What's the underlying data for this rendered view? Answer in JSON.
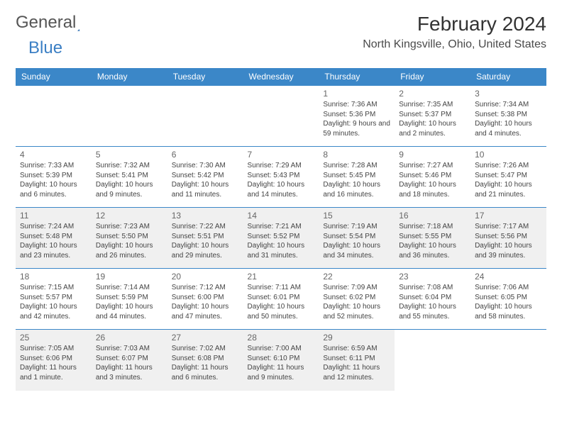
{
  "brand": {
    "word1": "General",
    "word2": "Blue",
    "logo_color": "#2a6bb0"
  },
  "title": "February 2024",
  "location": "North Kingsville, Ohio, United States",
  "colors": {
    "header_bg": "#3b87c8",
    "header_text": "#ffffff",
    "cell_border": "#3b87c8",
    "alt_row_bg": "#f0f0f0",
    "text": "#444444"
  },
  "day_headers": [
    "Sunday",
    "Monday",
    "Tuesday",
    "Wednesday",
    "Thursday",
    "Friday",
    "Saturday"
  ],
  "weeks": [
    [
      null,
      null,
      null,
      null,
      {
        "n": "1",
        "sunrise": "Sunrise: 7:36 AM",
        "sunset": "Sunset: 5:36 PM",
        "day": "Daylight: 9 hours and 59 minutes."
      },
      {
        "n": "2",
        "sunrise": "Sunrise: 7:35 AM",
        "sunset": "Sunset: 5:37 PM",
        "day": "Daylight: 10 hours and 2 minutes."
      },
      {
        "n": "3",
        "sunrise": "Sunrise: 7:34 AM",
        "sunset": "Sunset: 5:38 PM",
        "day": "Daylight: 10 hours and 4 minutes."
      }
    ],
    [
      {
        "n": "4",
        "sunrise": "Sunrise: 7:33 AM",
        "sunset": "Sunset: 5:39 PM",
        "day": "Daylight: 10 hours and 6 minutes."
      },
      {
        "n": "5",
        "sunrise": "Sunrise: 7:32 AM",
        "sunset": "Sunset: 5:41 PM",
        "day": "Daylight: 10 hours and 9 minutes."
      },
      {
        "n": "6",
        "sunrise": "Sunrise: 7:30 AM",
        "sunset": "Sunset: 5:42 PM",
        "day": "Daylight: 10 hours and 11 minutes."
      },
      {
        "n": "7",
        "sunrise": "Sunrise: 7:29 AM",
        "sunset": "Sunset: 5:43 PM",
        "day": "Daylight: 10 hours and 14 minutes."
      },
      {
        "n": "8",
        "sunrise": "Sunrise: 7:28 AM",
        "sunset": "Sunset: 5:45 PM",
        "day": "Daylight: 10 hours and 16 minutes."
      },
      {
        "n": "9",
        "sunrise": "Sunrise: 7:27 AM",
        "sunset": "Sunset: 5:46 PM",
        "day": "Daylight: 10 hours and 18 minutes."
      },
      {
        "n": "10",
        "sunrise": "Sunrise: 7:26 AM",
        "sunset": "Sunset: 5:47 PM",
        "day": "Daylight: 10 hours and 21 minutes."
      }
    ],
    [
      {
        "n": "11",
        "sunrise": "Sunrise: 7:24 AM",
        "sunset": "Sunset: 5:48 PM",
        "day": "Daylight: 10 hours and 23 minutes."
      },
      {
        "n": "12",
        "sunrise": "Sunrise: 7:23 AM",
        "sunset": "Sunset: 5:50 PM",
        "day": "Daylight: 10 hours and 26 minutes."
      },
      {
        "n": "13",
        "sunrise": "Sunrise: 7:22 AM",
        "sunset": "Sunset: 5:51 PM",
        "day": "Daylight: 10 hours and 29 minutes."
      },
      {
        "n": "14",
        "sunrise": "Sunrise: 7:21 AM",
        "sunset": "Sunset: 5:52 PM",
        "day": "Daylight: 10 hours and 31 minutes."
      },
      {
        "n": "15",
        "sunrise": "Sunrise: 7:19 AM",
        "sunset": "Sunset: 5:54 PM",
        "day": "Daylight: 10 hours and 34 minutes."
      },
      {
        "n": "16",
        "sunrise": "Sunrise: 7:18 AM",
        "sunset": "Sunset: 5:55 PM",
        "day": "Daylight: 10 hours and 36 minutes."
      },
      {
        "n": "17",
        "sunrise": "Sunrise: 7:17 AM",
        "sunset": "Sunset: 5:56 PM",
        "day": "Daylight: 10 hours and 39 minutes."
      }
    ],
    [
      {
        "n": "18",
        "sunrise": "Sunrise: 7:15 AM",
        "sunset": "Sunset: 5:57 PM",
        "day": "Daylight: 10 hours and 42 minutes."
      },
      {
        "n": "19",
        "sunrise": "Sunrise: 7:14 AM",
        "sunset": "Sunset: 5:59 PM",
        "day": "Daylight: 10 hours and 44 minutes."
      },
      {
        "n": "20",
        "sunrise": "Sunrise: 7:12 AM",
        "sunset": "Sunset: 6:00 PM",
        "day": "Daylight: 10 hours and 47 minutes."
      },
      {
        "n": "21",
        "sunrise": "Sunrise: 7:11 AM",
        "sunset": "Sunset: 6:01 PM",
        "day": "Daylight: 10 hours and 50 minutes."
      },
      {
        "n": "22",
        "sunrise": "Sunrise: 7:09 AM",
        "sunset": "Sunset: 6:02 PM",
        "day": "Daylight: 10 hours and 52 minutes."
      },
      {
        "n": "23",
        "sunrise": "Sunrise: 7:08 AM",
        "sunset": "Sunset: 6:04 PM",
        "day": "Daylight: 10 hours and 55 minutes."
      },
      {
        "n": "24",
        "sunrise": "Sunrise: 7:06 AM",
        "sunset": "Sunset: 6:05 PM",
        "day": "Daylight: 10 hours and 58 minutes."
      }
    ],
    [
      {
        "n": "25",
        "sunrise": "Sunrise: 7:05 AM",
        "sunset": "Sunset: 6:06 PM",
        "day": "Daylight: 11 hours and 1 minute."
      },
      {
        "n": "26",
        "sunrise": "Sunrise: 7:03 AM",
        "sunset": "Sunset: 6:07 PM",
        "day": "Daylight: 11 hours and 3 minutes."
      },
      {
        "n": "27",
        "sunrise": "Sunrise: 7:02 AM",
        "sunset": "Sunset: 6:08 PM",
        "day": "Daylight: 11 hours and 6 minutes."
      },
      {
        "n": "28",
        "sunrise": "Sunrise: 7:00 AM",
        "sunset": "Sunset: 6:10 PM",
        "day": "Daylight: 11 hours and 9 minutes."
      },
      {
        "n": "29",
        "sunrise": "Sunrise: 6:59 AM",
        "sunset": "Sunset: 6:11 PM",
        "day": "Daylight: 11 hours and 12 minutes."
      },
      null,
      null
    ]
  ]
}
